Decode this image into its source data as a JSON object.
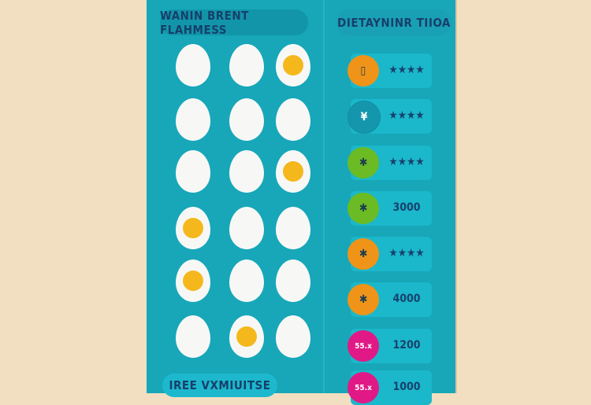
{
  "left_panel": {
    "title": "WANIN BRENT FLAHMESS",
    "footer": "IREE VXMIUITSE"
  },
  "right_panel": {
    "title": "DIETAYNINR TIIOA"
  },
  "eggs": [
    [
      false,
      false,
      true
    ],
    [
      false,
      false,
      false
    ],
    [
      false,
      false,
      true
    ],
    [
      true,
      false,
      false
    ],
    [
      true,
      false,
      false
    ],
    [
      false,
      true,
      false
    ]
  ],
  "items": [
    {
      "icon": "bread-icon",
      "color": "#ef9418",
      "symbol": "▯",
      "value": "★★★★"
    },
    {
      "icon": "leaf-icon",
      "color": "#1497ac",
      "symbol": "¥",
      "value": "★★★★"
    },
    {
      "icon": "herb-icon",
      "color": "#6bbb24",
      "symbol": "✱",
      "value": "★★★★"
    },
    {
      "icon": "herb-icon",
      "color": "#6bbb24",
      "symbol": "✱",
      "value": "3000"
    },
    {
      "icon": "star-icon",
      "color": "#ef9418",
      "symbol": "✱",
      "value": "★★★★"
    },
    {
      "icon": "herb-icon",
      "color": "#ef9418",
      "symbol": "✱",
      "value": "4000"
    },
    {
      "icon": "percent-icon",
      "color": "#e01986",
      "symbol": "55.x",
      "value": "1200"
    },
    {
      "icon": "percent-icon",
      "color": "#e01986",
      "symbol": "55.x",
      "value": "1000"
    }
  ]
}
